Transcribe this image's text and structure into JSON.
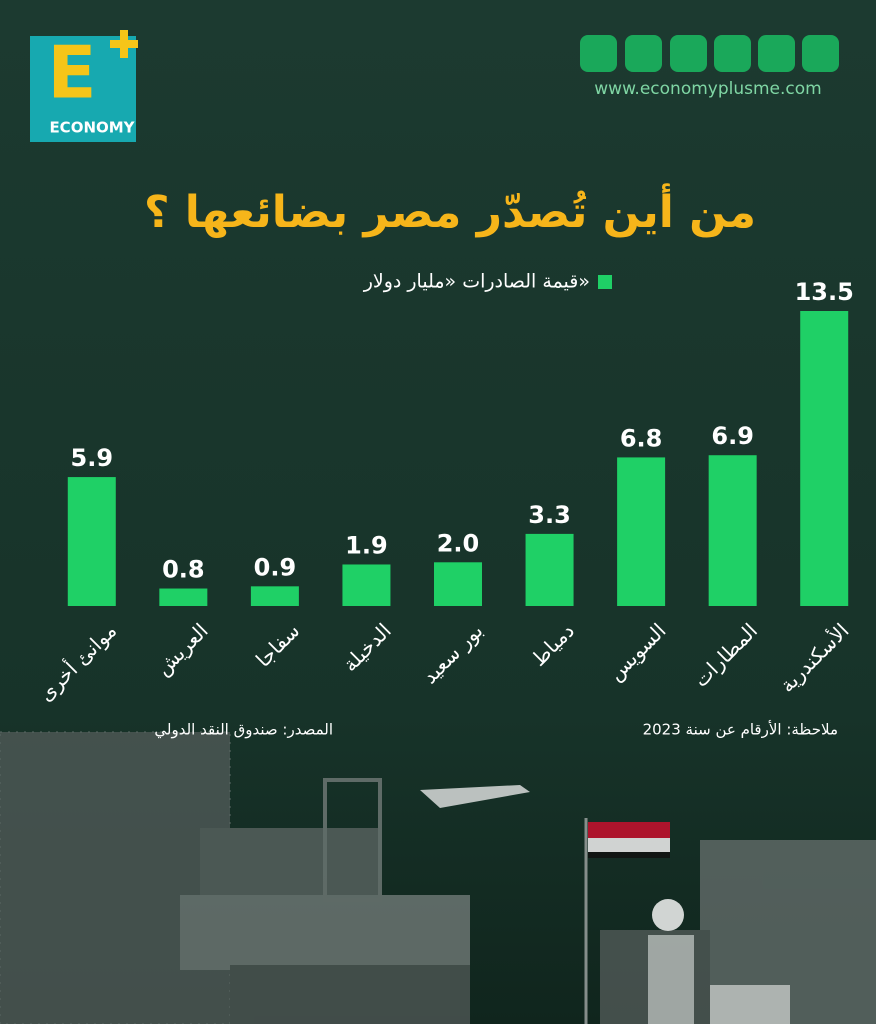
{
  "chart_data": {
    "type": "bar",
    "title": "من أين تُصدّر مصر بضائعها ؟",
    "legend": "قيمة الصادرات «مليار دولار»",
    "categories": [
      "موانئ أخرى",
      "العريش",
      "سفاجا",
      "الدخيلة",
      "بور سعيد",
      "دمياط",
      "السويس",
      "المطارات",
      "الأسكندرية"
    ],
    "values": [
      5.9,
      0.8,
      0.9,
      1.9,
      2.0,
      3.3,
      6.8,
      6.9,
      13.5
    ],
    "value_labels": [
      "5.9",
      "0.8",
      "0.9",
      "1.9",
      "2.0",
      "3.3",
      "6.8",
      "6.9",
      "13.5"
    ],
    "color": "#1fd066",
    "note": "ملاحظة: الأرقام عن سنة 2023",
    "source": "المصدر: صندوق النقد الدولي"
  },
  "header": {
    "logo_letter": "E",
    "logo_text": "ECONOMY",
    "website": "www.economyplusme.com"
  }
}
